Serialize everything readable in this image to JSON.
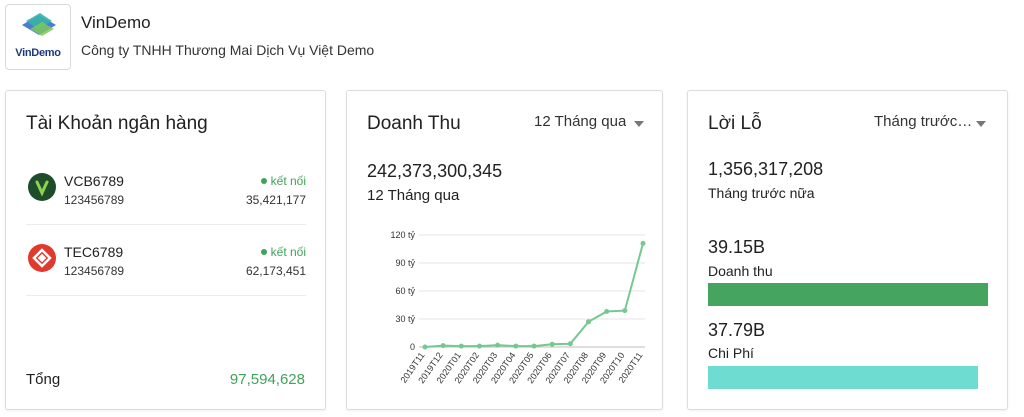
{
  "header": {
    "logo_text": "VinDemo",
    "company_name": "VinDemo",
    "company_full_name": "Công ty TNHH Thương Mai Dịch Vụ Việt Demo"
  },
  "bank_accounts": {
    "title": "Tài Khoản ngân hàng",
    "accounts": [
      {
        "name": "VCB6789",
        "number": "123456789",
        "status": "kết nối",
        "balance": "35,421,177",
        "icon": "vietcombank-icon"
      },
      {
        "name": "TEC6789",
        "number": "123456789",
        "status": "kết nối",
        "balance": "62,173,451",
        "icon": "techcombank-icon"
      }
    ],
    "total_label": "Tổng",
    "total_value": "97,594,628"
  },
  "revenue": {
    "title": "Doanh Thu",
    "period_select": "12 Tháng qua",
    "total": "242,373,300,345",
    "period_label": "12 Tháng qua"
  },
  "profit_loss": {
    "title": "Lời Lỗ",
    "period_select": "Tháng trước nữa",
    "net_value": "1,356,317,208",
    "period_label": "Tháng trước nữa",
    "revenue_amount": "39.15B",
    "revenue_label": "Doanh thu",
    "revenue_fraction": 1.0,
    "expense_amount": "37.79B",
    "expense_label": "Chi Phí",
    "expense_fraction": 0.965
  },
  "colors": {
    "accent_green": "#3fa35a",
    "revenue_bar": "#45a45f",
    "expense_bar": "#6edcd0",
    "line": "#75c890"
  },
  "chart_data": {
    "type": "line",
    "categories": [
      "2019T11",
      "2019T12",
      "2020T01",
      "2020T02",
      "2020T03",
      "2020T04",
      "2020T05",
      "2020T06",
      "2020T07",
      "2020T08",
      "2020T09",
      "2020T10",
      "2020T11"
    ],
    "values": [
      0,
      1.5,
      1,
      1,
      2,
      1,
      1,
      3,
      3.5,
      27,
      38,
      39,
      111
    ],
    "yticks": [
      "0",
      "30 tỷ",
      "60 tỷ",
      "90 tỷ",
      "120 tỷ"
    ],
    "ylim": [
      0,
      120
    ],
    "grid": true
  }
}
